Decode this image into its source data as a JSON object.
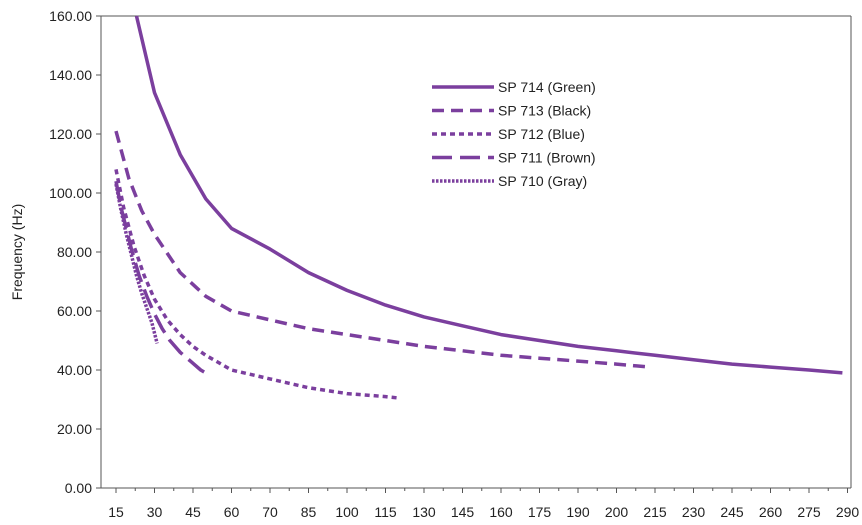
{
  "chart_data": {
    "type": "line",
    "title": "",
    "xlabel": "",
    "ylabel": "Frequency (Hz)",
    "xticks": [
      "15",
      "30",
      "45",
      "60",
      "70",
      "85",
      "100",
      "115",
      "130",
      "145",
      "160",
      "175",
      "190",
      "200",
      "215",
      "230",
      "245",
      "260",
      "275",
      "290"
    ],
    "yticks": [
      "0.00",
      "20.00",
      "40.00",
      "60.00",
      "80.00",
      "100.00",
      "120.00",
      "140.00",
      "160.00"
    ],
    "ylim": [
      0,
      160
    ],
    "grid": false,
    "legend_position": "top-center",
    "line_color": "#7b3f9e",
    "series": [
      {
        "name": "SP 714 (Green)",
        "dash": "solid",
        "x": [
          23,
          30,
          40,
          50,
          60,
          70,
          85,
          100,
          115,
          130,
          145,
          160,
          175,
          190,
          200,
          215,
          230,
          245,
          260,
          275,
          288
        ],
        "y": [
          160,
          134,
          113,
          98,
          88,
          81,
          73,
          67,
          62,
          58,
          55,
          52,
          50,
          48,
          46.5,
          45,
          43.5,
          42,
          41,
          40,
          39
        ]
      },
      {
        "name": "SP 713 (Black)",
        "dash": "dashed",
        "x": [
          15,
          20,
          25,
          30,
          40,
          50,
          60,
          70,
          85,
          100,
          115,
          130,
          145,
          160,
          175,
          190,
          200,
          213
        ],
        "y": [
          121,
          105,
          94,
          86,
          73,
          65,
          60,
          57,
          54,
          52,
          50,
          48,
          46.5,
          45,
          44,
          43,
          42,
          41
        ]
      },
      {
        "name": "SP 712 (Blue)",
        "dash": "dotted",
        "x": [
          15,
          18,
          22,
          26,
          30,
          35,
          40,
          45,
          50,
          60,
          70,
          85,
          100,
          115,
          120
        ],
        "y": [
          108,
          95,
          82,
          72,
          64,
          57,
          52,
          48,
          45,
          40,
          37,
          34,
          32,
          31,
          30.5
        ]
      },
      {
        "name": "SP 711 (Brown)",
        "dash": "long-dash",
        "x": [
          15,
          17,
          19,
          21,
          24,
          27,
          30,
          33,
          36,
          40,
          44,
          48,
          52
        ],
        "y": [
          104,
          95,
          88,
          81,
          72,
          65,
          59,
          54,
          50,
          46,
          43,
          40,
          38
        ]
      },
      {
        "name": "SP 710 (Gray)",
        "dash": "dense-dotted",
        "x": [
          15,
          17,
          19,
          21,
          23,
          25,
          27,
          29,
          31
        ],
        "y": [
          103,
          94,
          86,
          79,
          72,
          66,
          61,
          56,
          49
        ]
      }
    ]
  }
}
